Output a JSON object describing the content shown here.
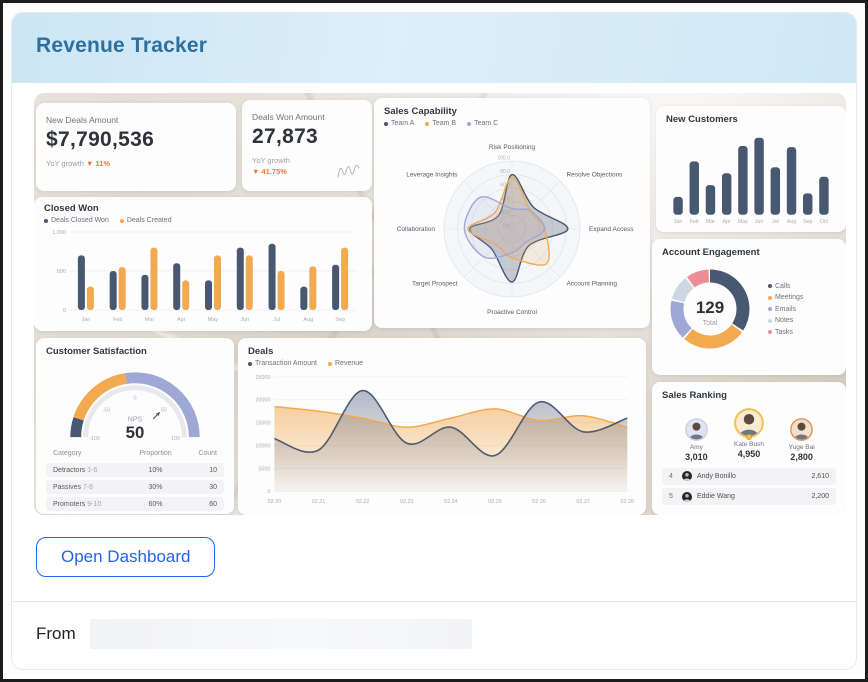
{
  "header": {
    "title": "Revenue Tracker"
  },
  "actions": {
    "open_dashboard": "Open Dashboard"
  },
  "footer": {
    "from_label": "From"
  },
  "colors": {
    "navy": "#485870",
    "orange": "#f2a950",
    "periwinkle": "#9fa8d5",
    "light_blue_gray": "#ccd7e1",
    "pink": "#ee8d96",
    "growth_orange": "#ed7a3b",
    "accent_blue": "#2563eb",
    "title_blue": "#2e6f9f"
  },
  "kpis": [
    {
      "label": "New Deals Amount",
      "value": "$7,790,536",
      "growth_label": "YoY growth",
      "growth_value": "▼ 11%"
    },
    {
      "label": "Deals Won Amount",
      "value": "27,873",
      "growth_label": "YoY growth",
      "growth_value": "▼ 41.75%"
    }
  ],
  "charts": {
    "closed_won": {
      "type": "bar",
      "title": "Closed Won",
      "categories": [
        "Jan",
        "Feb",
        "Mar",
        "Apr",
        "May",
        "Jun",
        "Jul",
        "Aug",
        "Sep"
      ],
      "series": [
        {
          "name": "Deals Closed Won",
          "color_key": "navy",
          "values": [
            700,
            500,
            450,
            600,
            380,
            800,
            850,
            300,
            580
          ]
        },
        {
          "name": "Deals Created",
          "color_key": "orange",
          "values": [
            300,
            550,
            800,
            380,
            700,
            700,
            500,
            560,
            800
          ]
        }
      ],
      "yticks": [
        0,
        500,
        1000
      ],
      "ytick_labels": [
        "0",
        "500",
        "1,000"
      ],
      "ymax": 1000
    },
    "new_customers": {
      "type": "bar",
      "title": "New Customers",
      "categories": [
        "Jan",
        "Feb",
        "Mar",
        "Apr",
        "May",
        "Jun",
        "Jul",
        "Aug",
        "Sep",
        "Oct"
      ],
      "values": [
        15,
        45,
        25,
        35,
        58,
        65,
        40,
        57,
        18,
        32
      ],
      "ymax": 70
    },
    "sales_capability": {
      "type": "radar",
      "title": "Sales Capability",
      "axes": [
        "Risk Positioning",
        "Resolve Objections",
        "Expand Access",
        "Account Planning",
        "Proactive Control",
        "Target Prospect",
        "Collaboration",
        "Leverage Insights"
      ],
      "rticks": [
        "100.0",
        "80.0",
        "60.0",
        "40.0",
        "20.0",
        "0.0"
      ],
      "rmax": 100,
      "series": [
        {
          "name": "Team A",
          "color_key": "navy",
          "values": [
            80,
            45,
            82,
            35,
            78,
            42,
            62,
            28
          ]
        },
        {
          "name": "Team B",
          "color_key": "orange",
          "values": [
            76,
            38,
            48,
            72,
            42,
            33,
            65,
            35
          ]
        },
        {
          "name": "Team C",
          "color_key": "periwinkle",
          "values": [
            30,
            38,
            48,
            28,
            35,
            58,
            70,
            66
          ]
        }
      ]
    },
    "account_engagement": {
      "type": "donut",
      "title": "Account Engagement",
      "total_value": "129",
      "total_label": "Total",
      "segments": [
        {
          "name": "Calls",
          "color_key": "navy",
          "value": 45
        },
        {
          "name": "Meetings",
          "color_key": "orange",
          "value": 35
        },
        {
          "name": "Emails",
          "color_key": "periwinkle",
          "value": 22
        },
        {
          "name": "Notes",
          "color_key": "light_blue_gray",
          "value": 14
        },
        {
          "name": "Tasks",
          "color_key": "pink",
          "value": 13
        }
      ]
    },
    "customer_satisfaction": {
      "type": "gauge",
      "title": "Customer Satisfaction",
      "gauge": {
        "min": -100,
        "max": 100,
        "value": 50,
        "center_label": "NPS",
        "center_value": "50",
        "ticks": [
          "-100",
          "-50",
          "0",
          "50",
          "100"
        ],
        "bands": [
          {
            "from": -100,
            "to": -80,
            "color_key": "navy"
          },
          {
            "from": -80,
            "to": -10,
            "color_key": "orange"
          },
          {
            "from": -10,
            "to": 100,
            "color_key": "periwinkle"
          }
        ]
      },
      "table": {
        "headers": [
          "Category",
          "Proportion",
          "Count"
        ],
        "rows": [
          {
            "category": "Detractors",
            "range": "1-6",
            "proportion": "10%",
            "count": "10"
          },
          {
            "category": "Passives",
            "range": "7-8",
            "proportion": "30%",
            "count": "30"
          },
          {
            "category": "Promoters",
            "range": "9-10",
            "proportion": "60%",
            "count": "60"
          }
        ]
      }
    },
    "deals": {
      "type": "area",
      "title": "Deals",
      "x": [
        "02.20",
        "02.21",
        "02.22",
        "02.23",
        "02.24",
        "02.25",
        "02.26",
        "02.27",
        "02.28"
      ],
      "series": [
        {
          "name": "Transaction Amount",
          "color_key": "navy",
          "values": [
            11500,
            9000,
            22000,
            10500,
            14000,
            7800,
            19500,
            13000,
            16000
          ]
        },
        {
          "name": "Revenue",
          "color_key": "orange",
          "values": [
            18500,
            17500,
            16000,
            14000,
            16000,
            18000,
            15500,
            16500,
            14000
          ]
        }
      ],
      "yticks": [
        0,
        5000,
        10000,
        15000,
        20000,
        25000
      ],
      "ymax": 25000
    }
  },
  "sales_ranking": {
    "title": "Sales Ranking",
    "top3": [
      {
        "rank": 2,
        "name": "Amy",
        "value": "3,010",
        "ring": "silver"
      },
      {
        "rank": 1,
        "name": "Kate Bush",
        "value": "4,950",
        "ring": "gold"
      },
      {
        "rank": 3,
        "name": "Yuge Bai",
        "value": "2,800",
        "ring": "bronze"
      }
    ],
    "rows": [
      {
        "rank": "4",
        "name": "Andy Bonillo",
        "value": "2,610"
      },
      {
        "rank": "5",
        "name": "Eddie Wang",
        "value": "2,200"
      }
    ]
  }
}
